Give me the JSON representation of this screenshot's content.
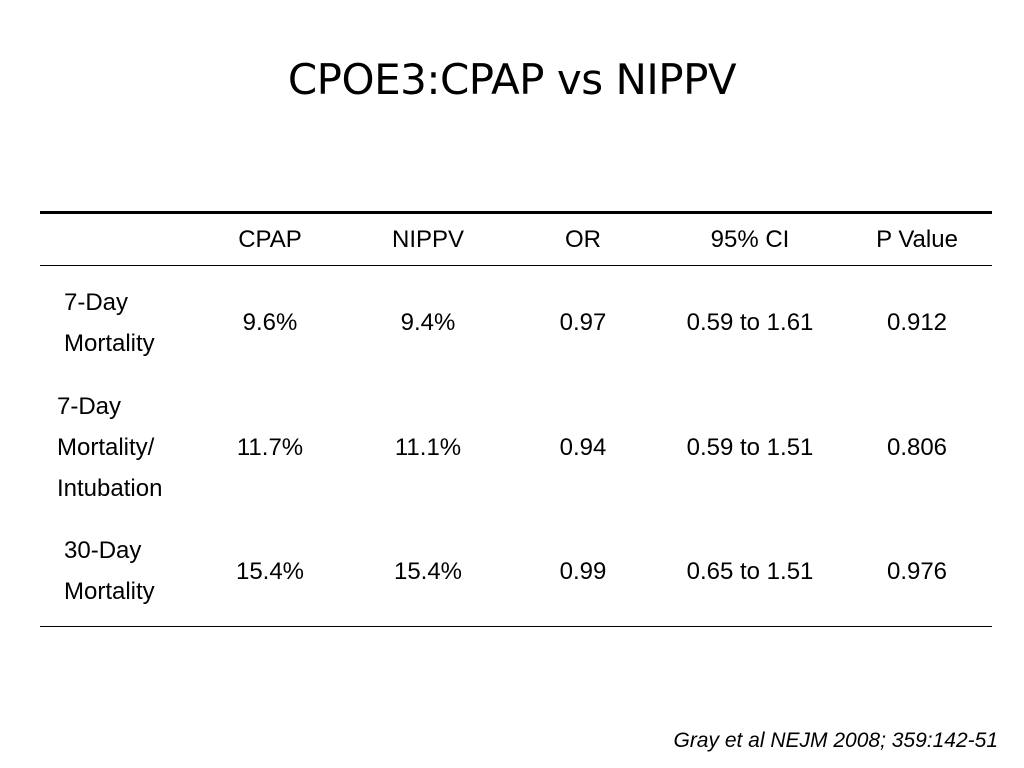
{
  "slide": {
    "title": "CPOE3:CPAP vs NIPPV",
    "citation": "Gray et al NEJM 2008; 359:142-51"
  },
  "table": {
    "headers": [
      "",
      "CPAP",
      "NIPPV",
      "OR",
      "95% CI",
      "P Value"
    ],
    "rows": [
      {
        "label_lines": [
          "7-Day",
          "Mortality"
        ],
        "cpap": "9.6%",
        "nippv": "9.4%",
        "or": "0.97",
        "ci": "0.59 to 1.61",
        "p": "0.912"
      },
      {
        "label_lines": [
          "7-Day",
          "Mortality/",
          "Intubation"
        ],
        "cpap": "11.7%",
        "nippv": "11.1%",
        "or": "0.94",
        "ci": "0.59 to 1.51",
        "p": "0.806"
      },
      {
        "label_lines": [
          "30-Day",
          "Mortality"
        ],
        "cpap": "15.4%",
        "nippv": "15.4%",
        "or": "0.99",
        "ci": "0.65 to 1.51",
        "p": "0.976"
      }
    ]
  }
}
